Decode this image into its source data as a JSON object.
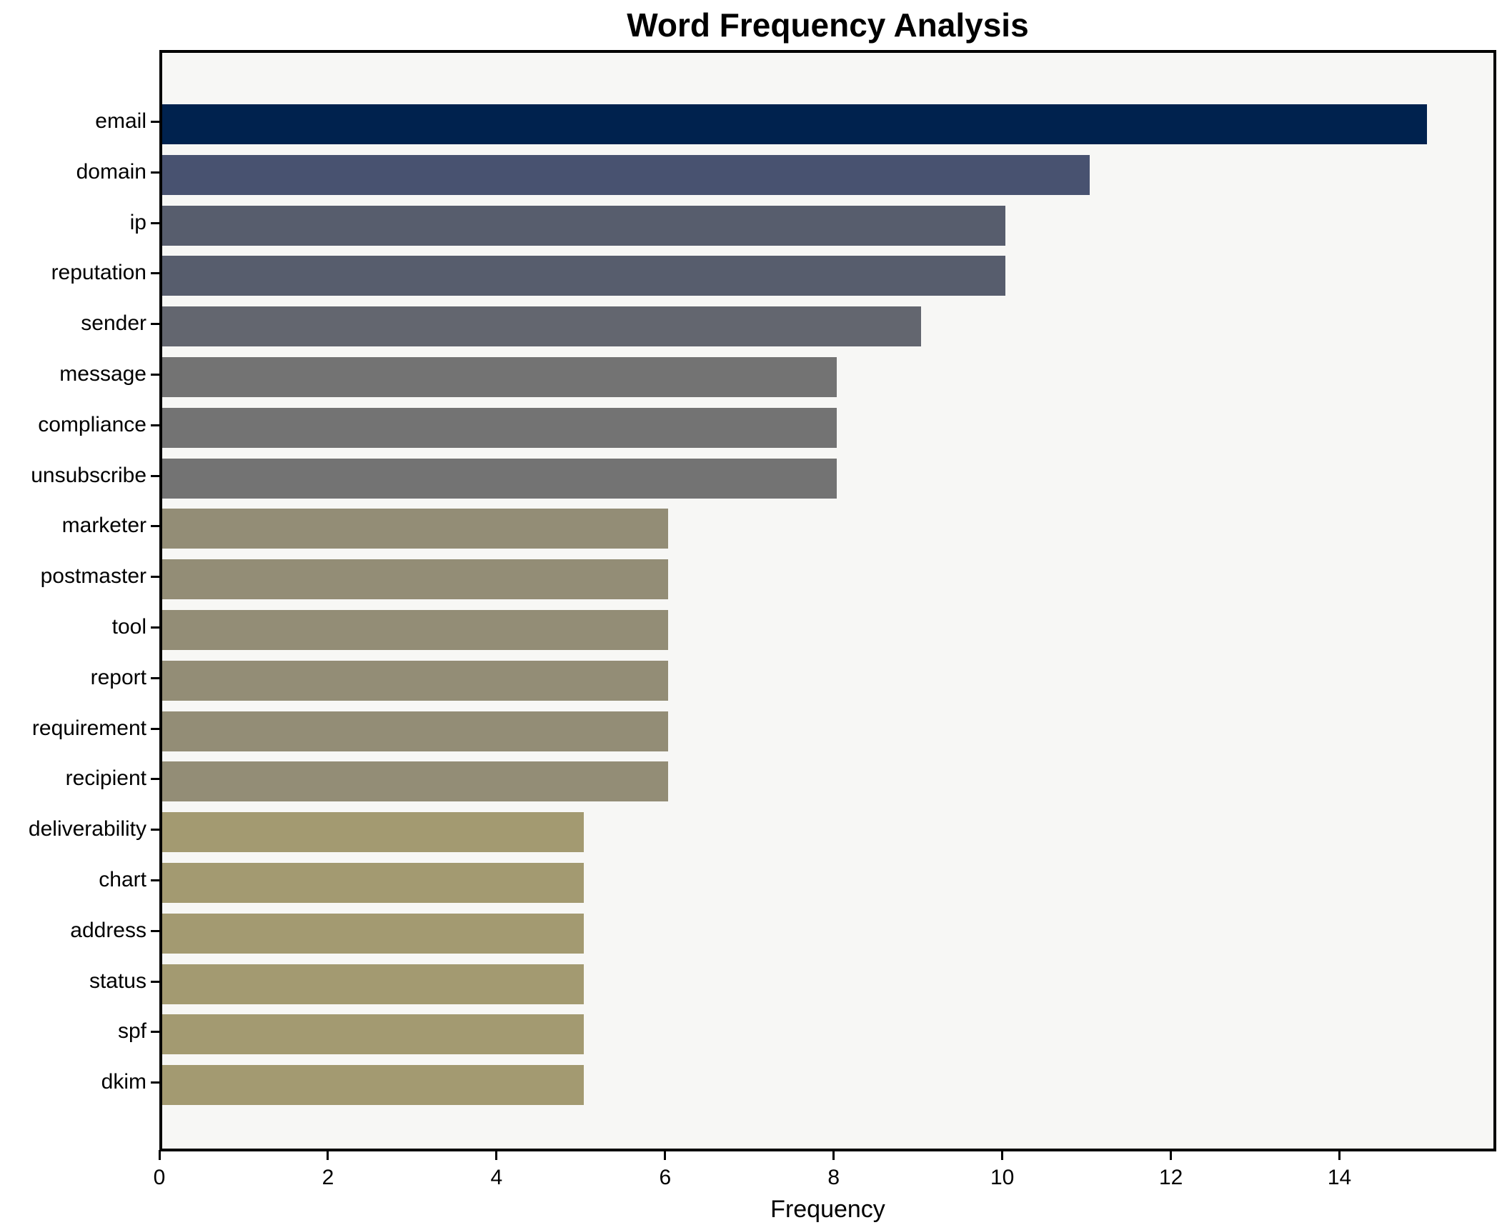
{
  "title": "Word Frequency Analysis",
  "chart_data": {
    "type": "bar",
    "orientation": "horizontal",
    "title": "Word Frequency Analysis",
    "xlabel": "Frequency",
    "ylabel": "",
    "grid": false,
    "legend": false,
    "xlim": [
      0,
      15.86
    ],
    "x_ticks": [
      0,
      2,
      4,
      6,
      8,
      10,
      12,
      14
    ],
    "categories": [
      "email",
      "domain",
      "ip",
      "reputation",
      "sender",
      "message",
      "compliance",
      "unsubscribe",
      "marketer",
      "postmaster",
      "tool",
      "report",
      "requirement",
      "recipient",
      "deliverability",
      "chart",
      "address",
      "status",
      "spf",
      "dkim"
    ],
    "values": [
      15,
      11,
      10,
      10,
      9,
      8,
      8,
      8,
      6,
      6,
      6,
      6,
      6,
      6,
      5,
      5,
      5,
      5,
      5,
      5
    ],
    "bar_colors": [
      "#00224e",
      "#485270",
      "#575d6d",
      "#575d6d",
      "#63666f",
      "#737373",
      "#737373",
      "#737373",
      "#938d76",
      "#938d76",
      "#938d76",
      "#938d76",
      "#938d76",
      "#938d76",
      "#a39a71",
      "#a39a71",
      "#a39a71",
      "#a39a71",
      "#a39a71",
      "#a39a71"
    ],
    "colors": {
      "plot_background": "#f7f7f5",
      "figure_background": "#ffffff",
      "spine": "#000000",
      "text": "#000000"
    }
  }
}
